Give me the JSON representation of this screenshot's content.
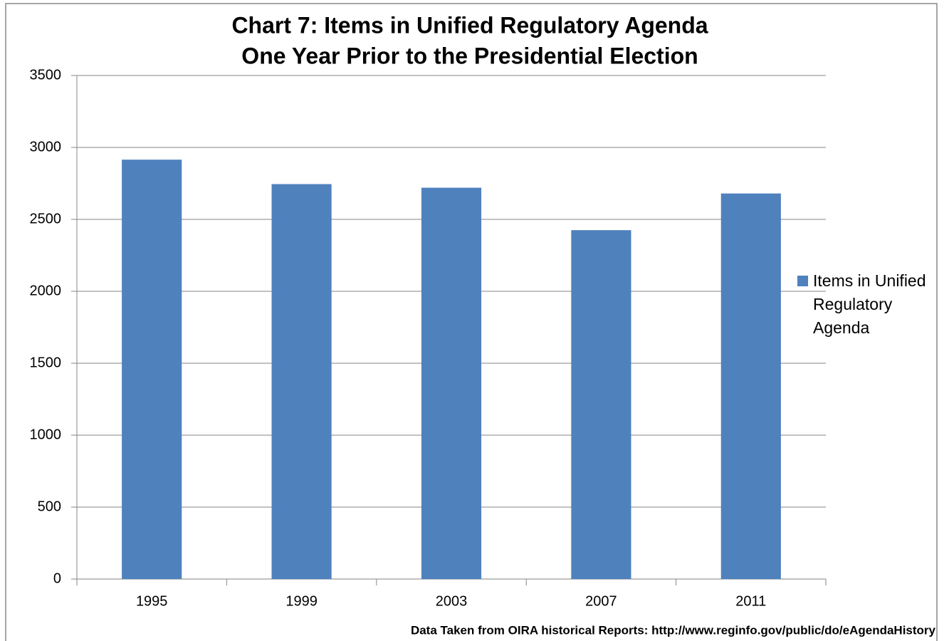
{
  "chart_data": {
    "type": "bar",
    "title": [
      "Chart 7: Items in Unified Regulatory Agenda",
      "One Year Prior to the Presidential Election"
    ],
    "categories": [
      "1995",
      "1999",
      "2003",
      "2007",
      "2011"
    ],
    "series": [
      {
        "name": "Items in Unified Regulatory Agenda",
        "color": "#4f81bd",
        "values": [
          2915,
          2745,
          2720,
          2425,
          2680
        ]
      }
    ],
    "ylim": [
      0,
      3500
    ],
    "yticks": [
      0,
      500,
      1000,
      1500,
      2000,
      2500,
      3000,
      3500
    ],
    "grid": true,
    "legend": "right",
    "annotation": "Data Taken from OIRA historical Reports: http://www.reginfo.gov/public/do/eAgendaHistory"
  }
}
